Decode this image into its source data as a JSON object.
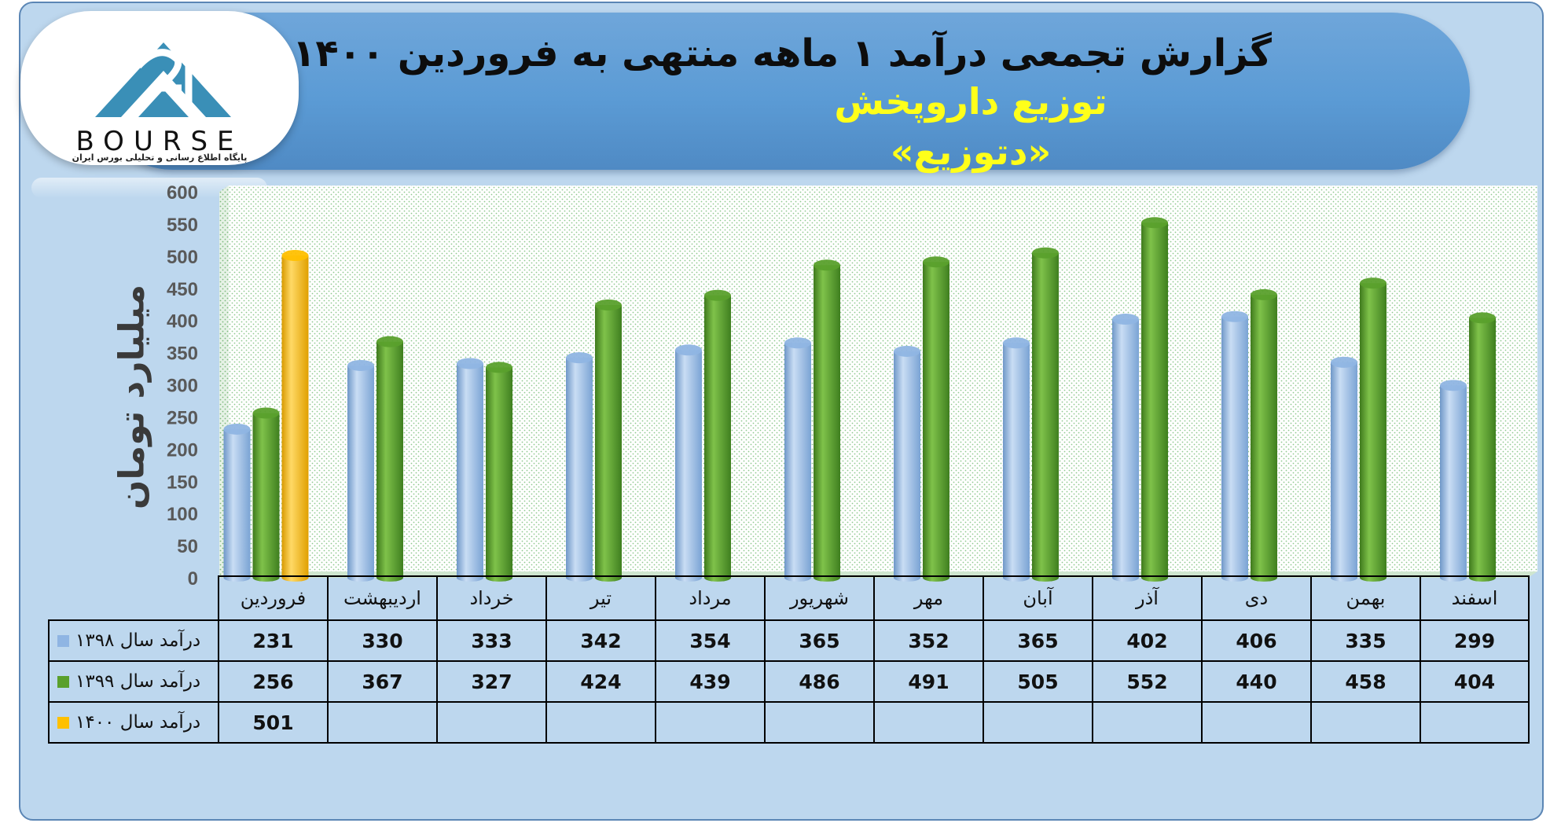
{
  "header": {
    "title": "گزارش تجمعی درآمد ۱ ماهه منتهی به فروردین ۱۴۰۰",
    "company": "توزیع داروپخش",
    "symbol": "«دتوزیع»"
  },
  "logo": {
    "word": "BOURSE",
    "tagline": "پایگاه اطلاع رسانی و تحلیلی بورس ایران"
  },
  "colors": {
    "series_1398": "#8fb5e3",
    "series_1399": "#5aa02c",
    "series_1400": "#ffc000",
    "background": "#bdd7ee",
    "banner": "#5b9bd5"
  },
  "chart_data": {
    "type": "bar",
    "ylabel": "میلیارد تومان",
    "ylim": [
      0,
      600
    ],
    "yticks": [
      0,
      50,
      100,
      150,
      200,
      250,
      300,
      350,
      400,
      450,
      500,
      550,
      600
    ],
    "grid": false,
    "legend": "table-left",
    "categories": [
      "فروردین",
      "اردیبهشت",
      "خرداد",
      "تیر",
      "مرداد",
      "شهریور",
      "مهر",
      "آبان",
      "آذر",
      "دی",
      "بهمن",
      "اسفند"
    ],
    "series": [
      {
        "name": "درآمد سال ۱۳۹۸",
        "color": "#8fb5e3",
        "values": [
          231,
          330,
          333,
          342,
          354,
          365,
          352,
          365,
          402,
          406,
          335,
          299
        ]
      },
      {
        "name": "درآمد سال ۱۳۹۹",
        "color": "#5aa02c",
        "values": [
          256,
          367,
          327,
          424,
          439,
          486,
          491,
          505,
          552,
          440,
          458,
          404
        ]
      },
      {
        "name": "درآمد سال ۱۴۰۰",
        "color": "#ffc000",
        "values": [
          501,
          null,
          null,
          null,
          null,
          null,
          null,
          null,
          null,
          null,
          null,
          null
        ]
      }
    ]
  }
}
